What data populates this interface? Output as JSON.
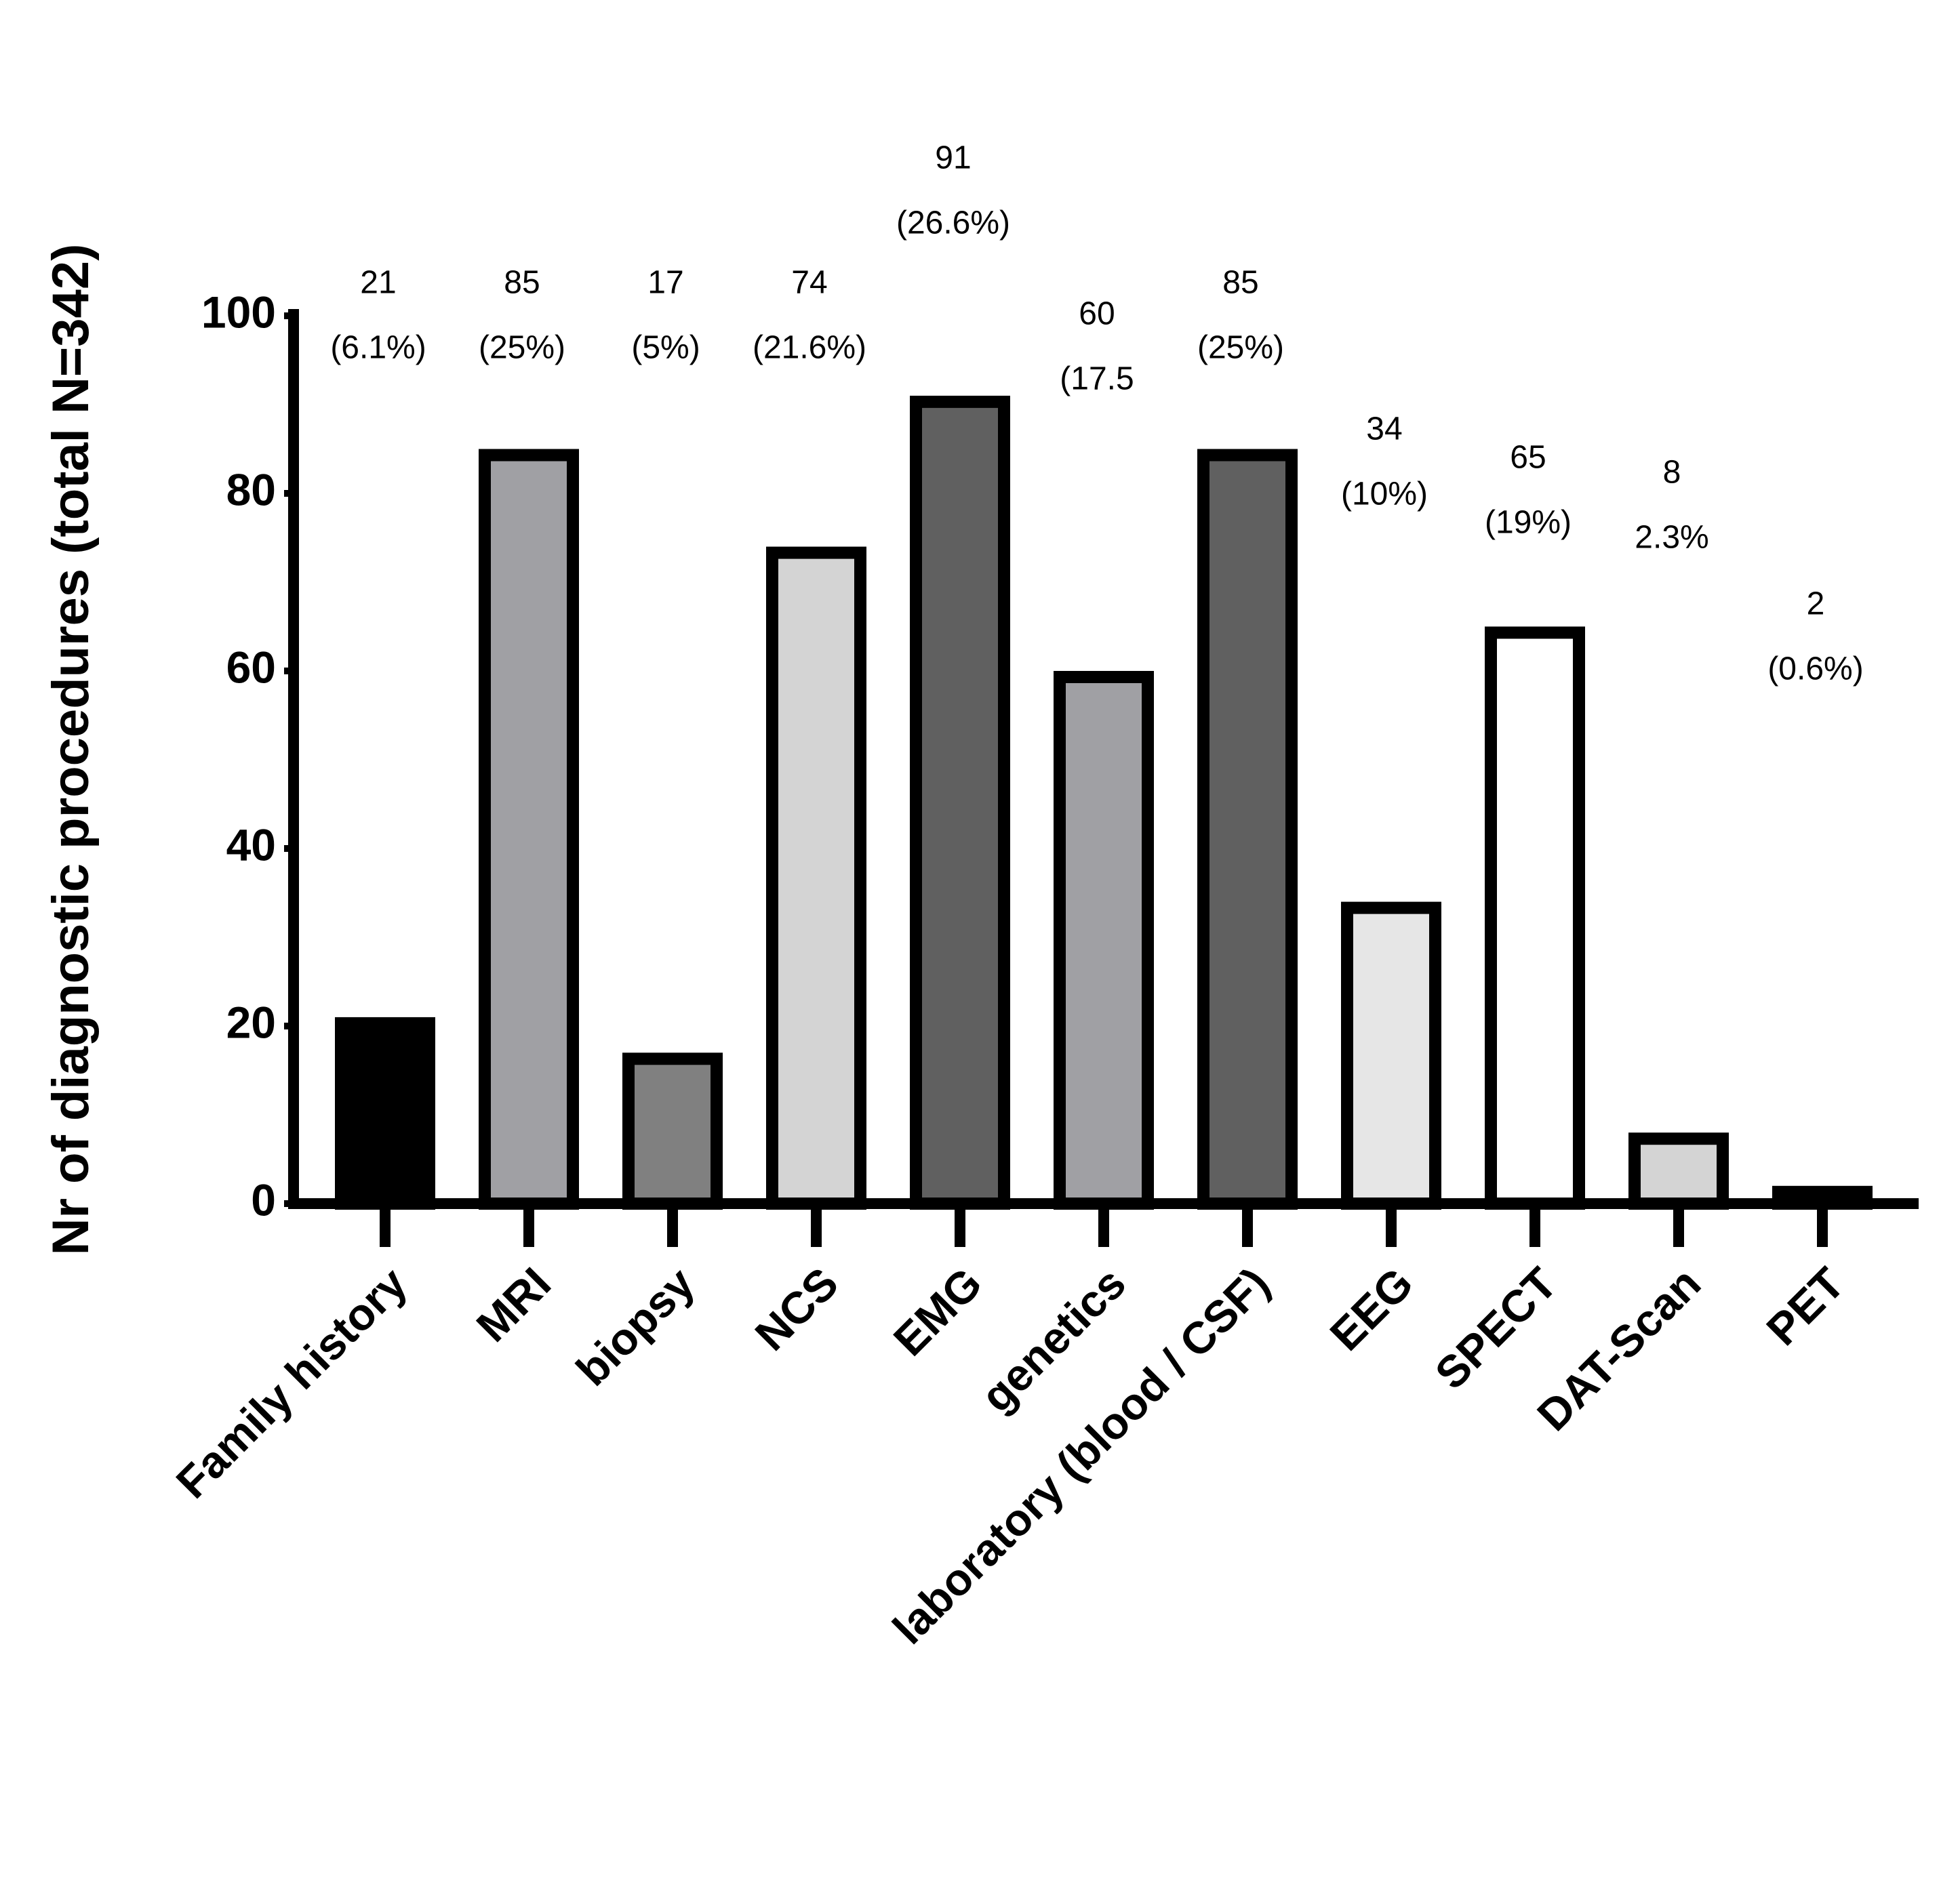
{
  "chart_data": {
    "type": "bar",
    "y_label": "Nr of diagnostic procedures (total N=342)",
    "categories": [
      "Family history",
      "MRI",
      "biopsy",
      "NCS",
      "EMG",
      "genetics",
      "laboratory (blood / CSF)",
      "EEG",
      "SPECT",
      "DAT-Scan",
      "PET"
    ],
    "values": [
      21,
      85,
      17,
      74,
      91,
      60,
      85,
      34,
      65,
      8,
      2
    ],
    "value_labels": [
      [
        "21",
        "(6.1%)"
      ],
      [
        "85",
        "(25%)"
      ],
      [
        "17",
        "(5%)"
      ],
      [
        "74",
        "(21.6%)"
      ],
      [
        "91",
        "(26.6%)"
      ],
      [
        "60",
        "(17.5"
      ],
      [
        "85",
        "(25%)"
      ],
      [
        "34",
        "(10%)"
      ],
      [
        "65",
        "(19%)"
      ],
      [
        "8",
        "2.3%"
      ],
      [
        "2",
        "(0.6%)"
      ]
    ],
    "colors": [
      "#000000",
      "#a0a0a4",
      "#808080",
      "#d4d4d4",
      "#606060",
      "#a0a0a4",
      "#606060",
      "#e6e6e6",
      "#ffffff",
      "#d4d4d4",
      "#000000"
    ],
    "ylim": [
      0,
      100
    ],
    "yticks": [
      0,
      20,
      40,
      60,
      80,
      100
    ],
    "grid": false
  }
}
